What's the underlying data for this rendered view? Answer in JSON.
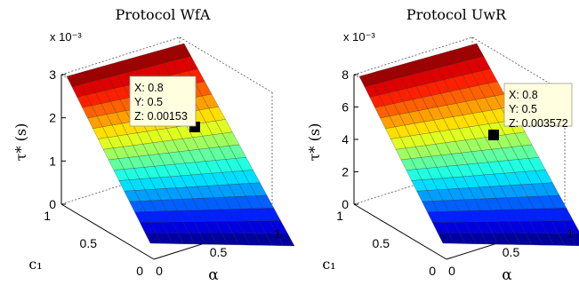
{
  "chart_data": [
    {
      "type": "surface",
      "title": "Protocol WfA",
      "zlabel": "τ* (s)",
      "exponent_label": "x 10⁻³",
      "xlabel": "α",
      "ylabel": "c₁",
      "x_ticks": [
        "0",
        "0.5",
        "1"
      ],
      "y_ticks": [
        "0",
        "0.5",
        "1"
      ],
      "z_ticks": [
        "0",
        "1",
        "2",
        "3"
      ],
      "zlim": [
        0,
        3
      ],
      "z_unit_scale": 0.001,
      "surface_z_range": [
        0,
        3
      ],
      "colormap": "jet",
      "datatip": {
        "x_label": "X: 0.8",
        "y_label": "Y: 0.5",
        "z_label": "Z: 0.00153",
        "x": 0.8,
        "y": 0.5,
        "z": 0.00153
      }
    },
    {
      "type": "surface",
      "title": "Protocol UwR",
      "zlabel": "τ* (s)",
      "exponent_label": "x 10⁻³",
      "xlabel": "α",
      "ylabel": "c₁",
      "x_ticks": [
        "0",
        "0.5",
        "1"
      ],
      "y_ticks": [
        "0",
        "0.5",
        "1"
      ],
      "z_ticks": [
        "0",
        "2",
        "4",
        "6",
        "8"
      ],
      "zlim": [
        0,
        8
      ],
      "z_unit_scale": 0.001,
      "surface_z_range": [
        0,
        8
      ],
      "colormap": "jet",
      "datatip": {
        "x_label": "X: 0.8",
        "y_label": "Y: 0.5",
        "z_label": "Z: 0.003572",
        "x": 0.8,
        "y": 0.5,
        "z": 0.003572
      }
    }
  ]
}
